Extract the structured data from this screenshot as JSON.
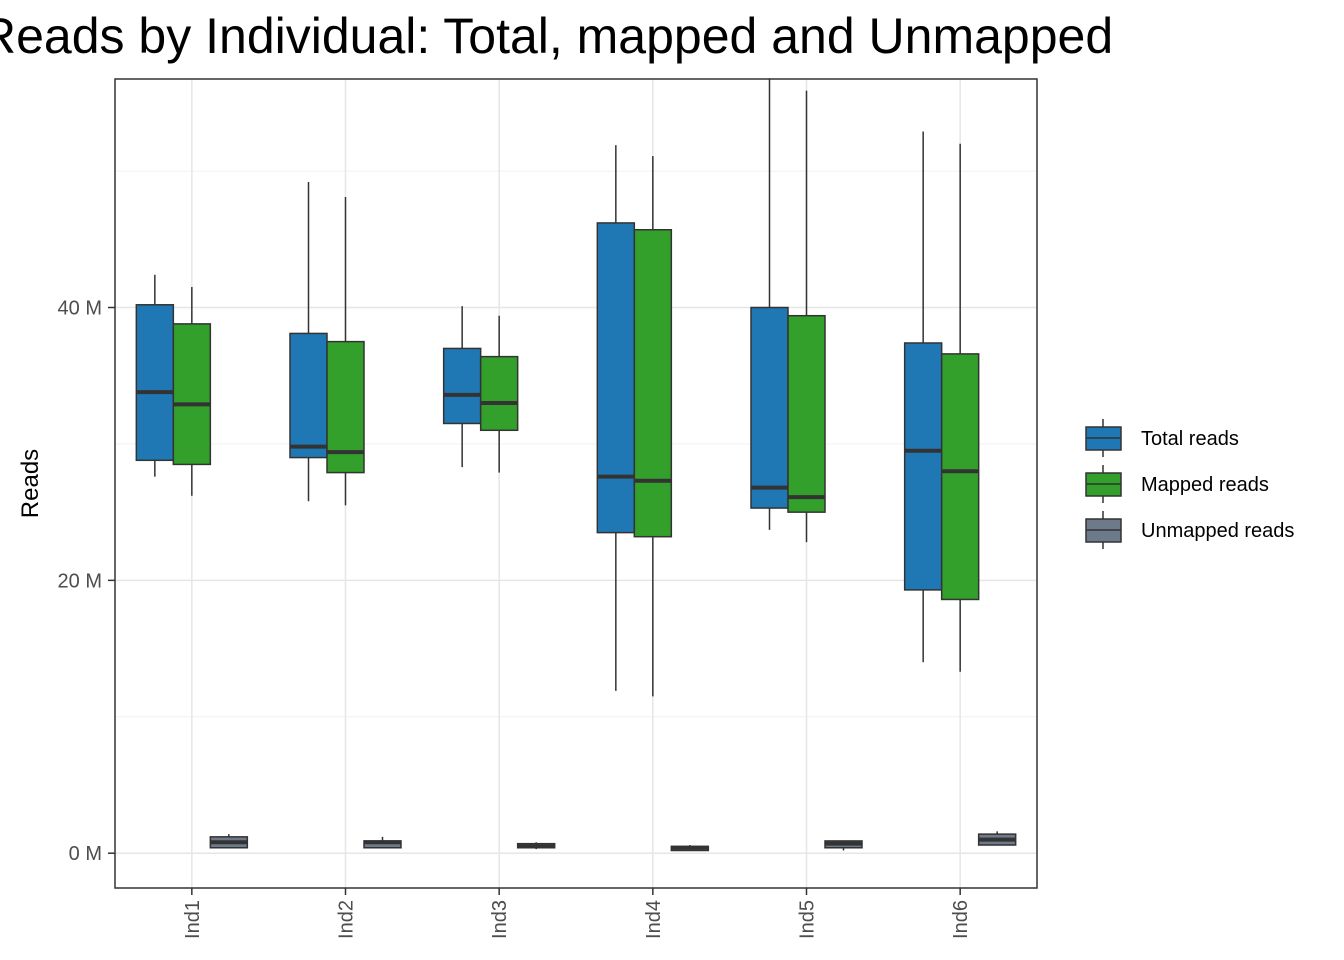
{
  "chart_data": {
    "type": "boxplot",
    "title": "Reads by Individual: Total, mapped and Unmapped",
    "xlabel": "",
    "ylabel": "Reads",
    "categories": [
      "Ind1",
      "Ind2",
      "Ind3",
      "Ind4",
      "Ind5",
      "Ind6"
    ],
    "ylim": [
      -2.5,
      59.5
    ],
    "y_ticks": [
      0,
      20,
      40
    ],
    "y_tick_labels": [
      "0 M",
      "20 M",
      "40 M"
    ],
    "y_unit": "M",
    "grid": true,
    "legend_position": "right",
    "series": [
      {
        "name": "Total reads",
        "color": "#1f78b4",
        "boxes": [
          {
            "whisker_low": 27.6,
            "q1": 28.8,
            "median": 33.8,
            "q3": 40.2,
            "whisker_high": 42.4
          },
          {
            "whisker_low": 25.8,
            "q1": 29.0,
            "median": 29.8,
            "q3": 38.1,
            "whisker_high": 49.2
          },
          {
            "whisker_low": 28.3,
            "q1": 31.5,
            "median": 33.6,
            "q3": 37.0,
            "whisker_high": 40.1
          },
          {
            "whisker_low": 11.9,
            "q1": 23.5,
            "median": 27.6,
            "q3": 46.2,
            "whisker_high": 51.9
          },
          {
            "whisker_low": 23.7,
            "q1": 25.3,
            "median": 26.8,
            "q3": 40.0,
            "whisker_high": 56.8
          },
          {
            "whisker_low": 14.0,
            "q1": 19.3,
            "median": 29.5,
            "q3": 37.4,
            "whisker_high": 52.9
          }
        ]
      },
      {
        "name": "Mapped reads",
        "color": "#33a02c",
        "boxes": [
          {
            "whisker_low": 26.2,
            "q1": 28.5,
            "median": 32.9,
            "q3": 38.8,
            "whisker_high": 41.5
          },
          {
            "whisker_low": 25.5,
            "q1": 27.9,
            "median": 29.4,
            "q3": 37.5,
            "whisker_high": 48.1
          },
          {
            "whisker_low": 27.9,
            "q1": 31.0,
            "median": 33.0,
            "q3": 36.4,
            "whisker_high": 39.4
          },
          {
            "whisker_low": 11.5,
            "q1": 23.2,
            "median": 27.3,
            "q3": 45.7,
            "whisker_high": 51.1
          },
          {
            "whisker_low": 22.8,
            "q1": 25.0,
            "median": 26.1,
            "q3": 39.4,
            "whisker_high": 55.9
          },
          {
            "whisker_low": 13.3,
            "q1": 18.6,
            "median": 28.0,
            "q3": 36.6,
            "whisker_high": 52.0
          }
        ]
      },
      {
        "name": "Unmapped reads",
        "color": "#6c7a89",
        "boxes": [
          {
            "whisker_low": 0.4,
            "q1": 0.4,
            "median": 0.8,
            "q3": 1.2,
            "whisker_high": 1.4
          },
          {
            "whisker_low": 0.4,
            "q1": 0.4,
            "median": 0.8,
            "q3": 0.9,
            "whisker_high": 1.2
          },
          {
            "whisker_low": 0.3,
            "q1": 0.4,
            "median": 0.5,
            "q3": 0.7,
            "whisker_high": 0.8
          },
          {
            "whisker_low": 0.2,
            "q1": 0.2,
            "median": 0.4,
            "q3": 0.5,
            "whisker_high": 0.6
          },
          {
            "whisker_low": 0.2,
            "q1": 0.4,
            "median": 0.7,
            "q3": 0.9,
            "whisker_high": 0.9
          },
          {
            "whisker_low": 0.6,
            "q1": 0.6,
            "median": 1.0,
            "q3": 1.4,
            "whisker_high": 1.6
          }
        ]
      }
    ]
  }
}
